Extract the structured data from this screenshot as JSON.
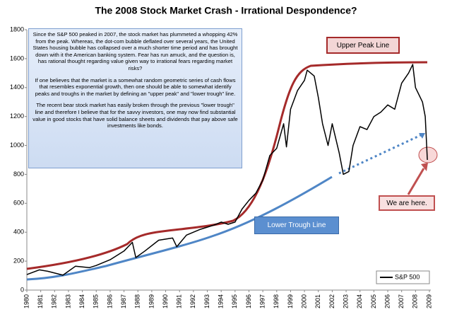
{
  "chart_data": {
    "type": "line",
    "title": "The 2008 Stock Market Crash - Irrational Despondence?",
    "x": [
      1980,
      1980.9,
      1981.5,
      1982.6,
      1983.5,
      1984.5,
      1985,
      1986,
      1987,
      1987.6,
      1987.85,
      1988.5,
      1989.5,
      1990.5,
      1990.8,
      1991.5,
      1992.5,
      1993.5,
      1994,
      1994.5,
      1995,
      1995.5,
      1996,
      1996.5,
      1997,
      1997.5,
      1998,
      1998.5,
      1998.7,
      1999,
      1999.5,
      2000,
      2000.2,
      2000.7,
      2001,
      2001.3,
      2001.7,
      2002,
      2002.5,
      2002.8,
      2003.2,
      2003.5,
      2004,
      2004.5,
      2005,
      2005.5,
      2006,
      2006.5,
      2007,
      2007.5,
      2007.8,
      2008,
      2008.5,
      2008.7,
      2008.85
    ],
    "series": [
      {
        "name": "S&P 500",
        "color": "#000000",
        "values": [
          107,
          140,
          130,
          103,
          165,
          155,
          170,
          210,
          270,
          330,
          225,
          270,
          345,
          360,
          300,
          380,
          420,
          450,
          470,
          455,
          470,
          560,
          620,
          670,
          760,
          930,
          980,
          1150,
          990,
          1250,
          1380,
          1450,
          1520,
          1480,
          1330,
          1150,
          1000,
          1150,
          950,
          800,
          820,
          1000,
          1130,
          1110,
          1200,
          1230,
          1280,
          1250,
          1430,
          1500,
          1560,
          1400,
          1300,
          1200,
          900
        ]
      }
    ],
    "xlim": [
      1980,
      2009
    ],
    "xticks": [
      1980,
      1981,
      1982,
      1983,
      1984,
      1985,
      1986,
      1987,
      1988,
      1989,
      1990,
      1991,
      1992,
      1993,
      1994,
      1995,
      1996,
      1997,
      1998,
      1999,
      2000,
      2001,
      2002,
      2003,
      2004,
      2005,
      2006,
      2007,
      2008,
      2009
    ],
    "ylim": [
      0,
      1800
    ],
    "yticks": [
      0,
      200,
      400,
      600,
      800,
      1000,
      1200,
      1400,
      1600,
      1800
    ],
    "grid": false,
    "legend": "lower right",
    "annotations": {
      "text_box": [
        "Since the S&P 500 peaked in 2007, the stock market has plummeted a whopping 42% from the peak.  Whereas, the dot-com bubble deflated over several years, the United States housing bubble has collapsed over a much shorter time period and has brought down with it the American banking system.  Fear has run amuck, and the question is, has rational thought regarding value given way to irrational fears regarding market risks?",
        "If one believes that the market is a somewhat random geometric series of cash flows that resembles exponential growth, then one should be able to somewhat identify peaks and troughs in the market by defining an \"upper peak\" and \"lower trough\" line.",
        "The recent bear stock market has easily broken through the previous \"lower trough\" line and therefore I believe that for the savvy investors, one may now find substantial value in good stocks that have solid balance sheets and dividends that pay above safe investments like bonds."
      ],
      "upper_label": "Upper Peak Line",
      "lower_label": "Lower Trough Line",
      "here_label": "We are here."
    }
  }
}
